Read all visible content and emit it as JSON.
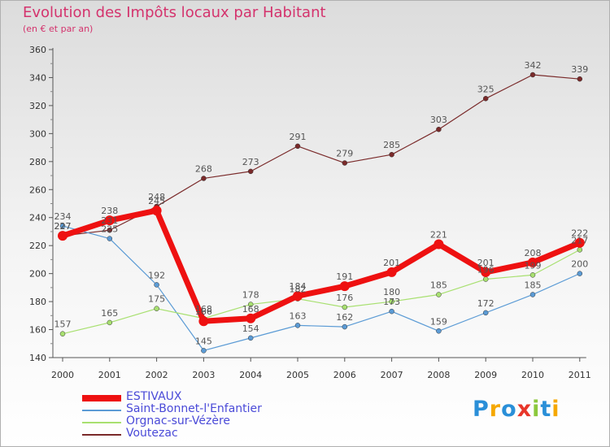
{
  "chart_data": {
    "type": "line",
    "title": "Evolution des Impôts locaux par Habitant",
    "subtitle": "(en € et par an)",
    "categories": [
      "2000",
      "2001",
      "2002",
      "2003",
      "2004",
      "2005",
      "2006",
      "2007",
      "2008",
      "2009",
      "2010",
      "2011"
    ],
    "ylim": [
      140,
      360
    ],
    "yticks": [
      140,
      160,
      180,
      200,
      220,
      240,
      260,
      280,
      300,
      320,
      340,
      360
    ],
    "grid": false,
    "legend_position": "bottom-left",
    "series": [
      {
        "name": "ESTIVAUX",
        "color": "#ee1111",
        "values": [
          227,
          238,
          245,
          166,
          168,
          184,
          191,
          201,
          221,
          201,
          208,
          222
        ]
      },
      {
        "name": "Saint-Bonnet-l'Enfantier",
        "color": "#5b9bd5",
        "values": [
          234,
          225,
          192,
          145,
          154,
          163,
          162,
          173,
          159,
          172,
          185,
          200
        ]
      },
      {
        "name": "Orgnac-sur-Vézère",
        "color": "#a8e070",
        "values": [
          157,
          165,
          175,
          168,
          178,
          182,
          176,
          180,
          185,
          196,
          199,
          217
        ]
      },
      {
        "name": "Voutezac",
        "color": "#7a2a2a",
        "values": [
          227,
          231,
          248,
          268,
          273,
          291,
          279,
          285,
          303,
          325,
          342,
          339
        ]
      }
    ]
  },
  "logo": {
    "letters": [
      "P",
      "r",
      "o",
      "x",
      "i",
      "t",
      "i"
    ],
    "colors": [
      "#2a8fd8",
      "#f5a800",
      "#2a8fd8",
      "#e8362a",
      "#8cc83c",
      "#2a8fd8",
      "#f5a800"
    ]
  }
}
